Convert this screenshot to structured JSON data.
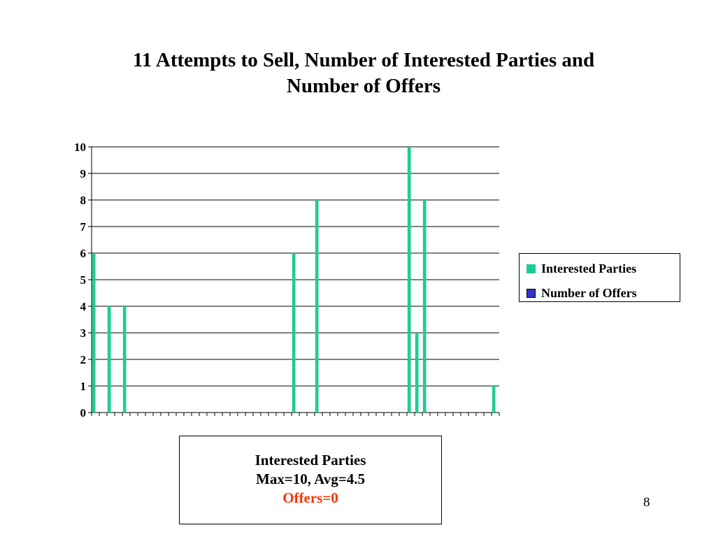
{
  "slide": {
    "title_lines": [
      "11 Attempts to Sell, Number of Interested Parties and",
      "Number of Offers"
    ],
    "page_number": "8"
  },
  "chart_data": {
    "type": "bar",
    "ylim": [
      0,
      10
    ],
    "yticks": [
      0,
      1,
      2,
      3,
      4,
      5,
      6,
      7,
      8,
      9,
      10
    ],
    "grid": true,
    "category_count": 53,
    "legend": "right",
    "series": [
      {
        "name": "Interested Parties",
        "color": "#1ecc96",
        "values": [
          6,
          0,
          4,
          0,
          4,
          0,
          0,
          0,
          0,
          0,
          0,
          0,
          0,
          0,
          0,
          0,
          0,
          0,
          0,
          0,
          0,
          0,
          0,
          0,
          0,
          0,
          6,
          0,
          0,
          8,
          0,
          0,
          0,
          0,
          0,
          0,
          0,
          0,
          0,
          0,
          0,
          10,
          3,
          8,
          0,
          0,
          0,
          0,
          0,
          0,
          0,
          0,
          1
        ]
      },
      {
        "name": "Number of Offers",
        "color": "#3333cc",
        "values": [
          0,
          0,
          0,
          0,
          0,
          0,
          0,
          0,
          0,
          0,
          0,
          0,
          0,
          0,
          0,
          0,
          0,
          0,
          0,
          0,
          0,
          0,
          0,
          0,
          0,
          0,
          0,
          0,
          0,
          0,
          0,
          0,
          0,
          0,
          0,
          0,
          0,
          0,
          0,
          0,
          0,
          0,
          0,
          0,
          0,
          0,
          0,
          0,
          0,
          0,
          0,
          0,
          0
        ]
      }
    ]
  },
  "stats": {
    "line1": "Interested Parties",
    "line2": "Max=10, Avg=4.5",
    "line3": "Offers=0",
    "offers_color": "#ff3300"
  }
}
